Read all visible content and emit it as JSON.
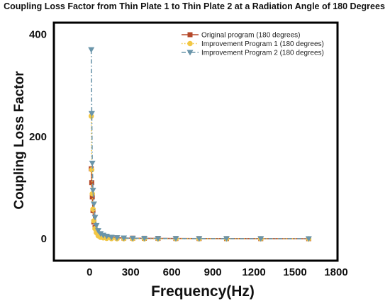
{
  "chart_data": {
    "type": "line",
    "title": "Coupling Loss Factor from Thin Plate 1 to Thin Plate 2 at a Radiation Angle of 180 Degrees",
    "xlabel": "Frequency(Hz)",
    "ylabel": "Coupling Loss Factor",
    "xlim": [
      -250,
      1800
    ],
    "ylim": [
      -40,
      420
    ],
    "xticks": [
      0,
      300,
      600,
      900,
      1200,
      1500,
      1800
    ],
    "yticks": [
      0,
      200,
      400
    ],
    "grid": false,
    "legend_position": "top-right",
    "series": [
      {
        "name": "Original program (180 degrees)",
        "color": "#b5482a",
        "marker": "square",
        "line_style": "solid",
        "x": [
          12.5,
          16,
          20,
          25,
          31.5,
          40,
          50,
          63,
          80,
          100,
          125,
          160,
          200,
          250,
          315,
          400,
          500,
          630,
          800,
          1000,
          1250,
          1600
        ],
        "y": [
          137,
          110,
          82,
          55,
          33,
          22,
          15,
          10,
          7,
          5,
          4,
          3,
          2,
          1.5,
          1.2,
          1,
          0.8,
          0.6,
          0.5,
          0.4,
          0.3,
          0.2
        ]
      },
      {
        "name": "Improvement Program 1 (180 degrees)",
        "color": "#f2c744",
        "marker": "circle",
        "line_style": "dotted",
        "x": [
          12.5,
          16,
          20,
          25,
          31.5,
          40,
          50,
          63,
          80,
          100,
          125,
          160,
          200,
          250,
          315,
          400,
          500,
          630,
          800,
          1000,
          1250,
          1600
        ],
        "y": [
          240,
          135,
          88,
          58,
          35,
          20,
          12,
          6,
          3,
          2,
          1,
          0.5,
          0.3,
          0.2,
          0.1,
          0.1,
          0.1,
          0.1,
          0.1,
          0.1,
          0.1,
          0.1
        ]
      },
      {
        "name": "Improvement Program 2 (180 degrees)",
        "color": "#6a95aa",
        "marker": "triangle-down",
        "line_style": "dash-dot",
        "x": [
          12.5,
          16,
          20,
          25,
          31.5,
          40,
          50,
          63,
          80,
          100,
          125,
          160,
          200,
          250,
          315,
          400,
          500,
          630,
          800,
          1000,
          1250,
          1600
        ],
        "y": [
          370,
          245,
          148,
          95,
          68,
          42,
          26,
          16,
          10,
          7,
          5,
          3,
          2,
          1.5,
          1,
          0.8,
          0.6,
          0.5,
          0.4,
          0.3,
          0.3,
          0.2
        ]
      }
    ]
  }
}
